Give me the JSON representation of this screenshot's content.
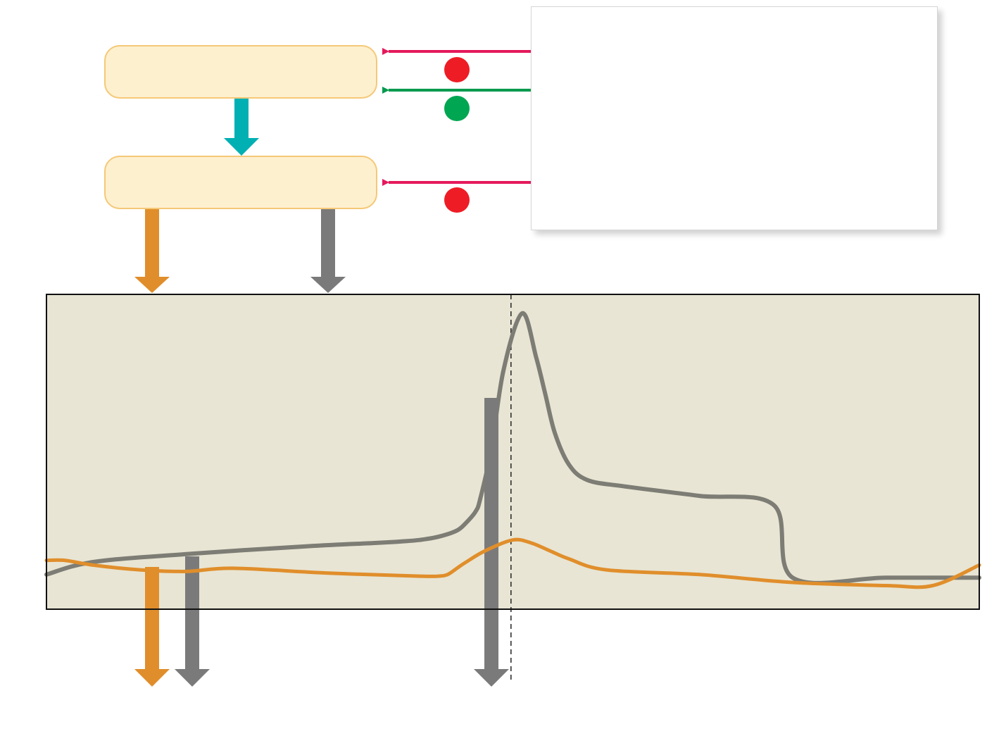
{
  "boxes": {
    "upper_label": "",
    "lower_label": ""
  },
  "legend_panel_text": "",
  "colors": {
    "box_fill": "#fdf0cf",
    "box_border": "#f5c877",
    "arrow_teal": "#00b0b3",
    "arrow_orange": "#e08e2b",
    "arrow_gray": "#7a7a7a",
    "inhibit_red": "#ee1c25",
    "stimulate_green": "#00a651",
    "feedback_pink": "#e5195b",
    "feedback_green": "#009a4e",
    "plot_bg": "#e8e5d4",
    "curve_gray": "#7d7d75",
    "curve_orange": "#e08e2b"
  },
  "feedback_arrows": [
    {
      "name": "feedback-arrow-1",
      "type": "inhibit",
      "marker": "red-dot"
    },
    {
      "name": "feedback-arrow-2",
      "type": "stimulate",
      "marker": "green-dot"
    },
    {
      "name": "feedback-arrow-3",
      "type": "inhibit",
      "marker": "red-dot"
    }
  ],
  "chart_data": {
    "type": "line",
    "title": "",
    "xlabel": "",
    "ylabel": "",
    "xlim": [
      0,
      100
    ],
    "ylim": [
      0,
      100
    ],
    "series": [
      {
        "color": "#7d7d75",
        "x": [
          0,
          5,
          15,
          28,
          35,
          38,
          40,
          42,
          44,
          45,
          46,
          46.5,
          47.7,
          49,
          51,
          52.5,
          53.5,
          54.5,
          56,
          58,
          62,
          70,
          78,
          80,
          90,
          100
        ],
        "y": [
          11,
          15,
          17.5,
          20,
          21,
          21.5,
          22,
          23,
          25,
          27.5,
          31,
          35,
          51,
          76,
          94,
          80,
          68,
          56,
          46,
          41,
          39,
          36,
          33,
          10,
          10,
          10
        ]
      },
      {
        "color": "#e08e2b",
        "x": [
          0,
          2,
          5,
          10,
          15,
          20,
          30,
          40,
          42,
          43,
          44,
          45,
          47,
          50,
          52,
          54,
          56,
          60,
          70,
          80,
          90,
          95,
          100
        ],
        "y": [
          15.5,
          15.5,
          14,
          12.5,
          12,
          13,
          11.5,
          10.5,
          10.5,
          11,
          13,
          15,
          18.5,
          22,
          21,
          18.5,
          16,
          12.5,
          11,
          8.5,
          7.5,
          7.5,
          14
        ]
      }
    ],
    "threshold_x": 49.8,
    "surge_bar_x": 47.7,
    "grid": false,
    "legend": "none"
  }
}
